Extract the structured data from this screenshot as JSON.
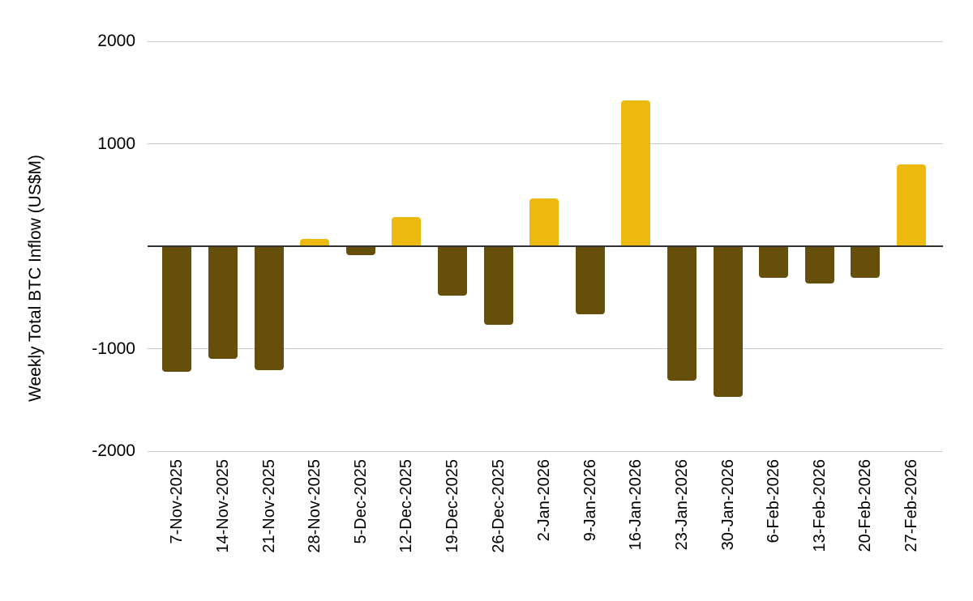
{
  "chart_data": {
    "type": "bar",
    "title": "",
    "xlabel": "",
    "ylabel": "Weekly Total BTC Inflow (US$M)",
    "categories": [
      "7-Nov-2025",
      "14-Nov-2025",
      "21-Nov-2025",
      "28-Nov-2025",
      "5-Dec-2025",
      "12-Dec-2025",
      "19-Dec-2025",
      "26-Dec-2025",
      "2-Jan-2026",
      "9-Jan-2026",
      "16-Jan-2026",
      "23-Jan-2026",
      "30-Jan-2026",
      "6-Feb-2026",
      "13-Feb-2026",
      "20-Feb-2026",
      "27-Feb-2026"
    ],
    "values": [
      -1225,
      -1100,
      -1210,
      75,
      -90,
      285,
      -480,
      -765,
      465,
      -665,
      1420,
      -1315,
      -1470,
      -310,
      -360,
      -305,
      795
    ],
    "ylim": [
      -2000,
      2000
    ],
    "y_tick_values": [
      2000,
      1000,
      -1000,
      -2000
    ],
    "y_tick_labels": [
      "2000",
      "1000",
      "-1000",
      "-2000"
    ],
    "gridline_values": [
      2000,
      1000,
      0,
      -1000,
      -2000
    ],
    "grid": true,
    "legend": "none",
    "colors": {
      "positive": "#EDB90F",
      "negative": "#654F0A",
      "gridline": "#CCCCCC",
      "zero_line": "#333333",
      "text": "#000000",
      "background": "#FFFFFF"
    }
  }
}
